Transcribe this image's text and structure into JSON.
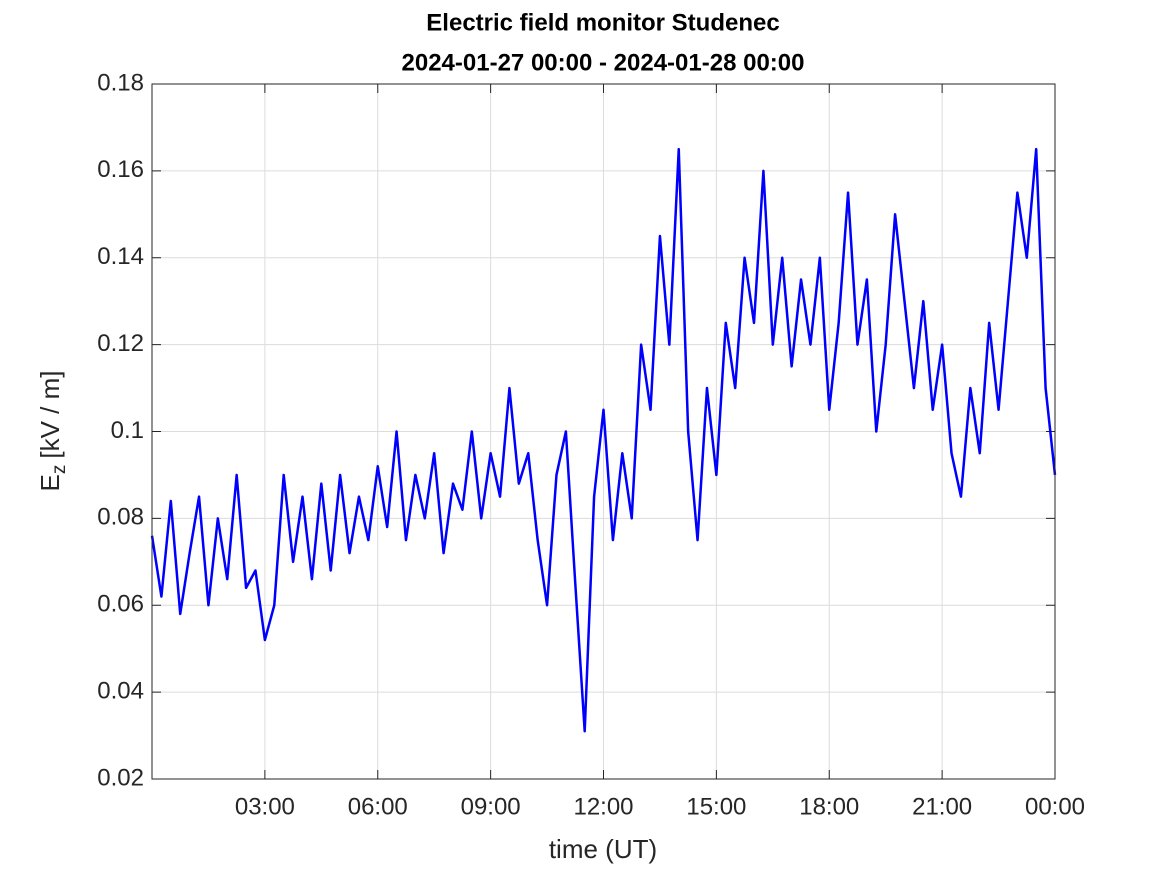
{
  "chart_data": {
    "type": "line",
    "title": "Electric field monitor Studenec",
    "subtitle": "2024-01-27 00:00 - 2024-01-28 00:00",
    "x_label": "time (UT)",
    "y_label": {
      "main": "E",
      "subscript": "z",
      "unit": "[kV / m]"
    },
    "x": [
      0,
      0.25,
      0.5,
      0.75,
      1,
      1.25,
      1.5,
      1.75,
      2,
      2.25,
      2.5,
      2.75,
      3,
      3.25,
      3.5,
      3.75,
      4,
      4.25,
      4.5,
      4.75,
      5,
      5.25,
      5.5,
      5.75,
      6,
      6.25,
      6.5,
      6.75,
      7,
      7.25,
      7.5,
      7.75,
      8,
      8.25,
      8.5,
      8.75,
      9,
      9.25,
      9.5,
      9.75,
      10,
      10.25,
      10.5,
      10.75,
      11,
      11.25,
      11.5,
      11.75,
      12,
      12.25,
      12.5,
      12.75,
      13,
      13.25,
      13.5,
      13.75,
      14,
      14.25,
      14.5,
      14.75,
      15,
      15.25,
      15.5,
      15.75,
      16,
      16.25,
      16.5,
      16.75,
      17,
      17.25,
      17.5,
      17.75,
      18,
      18.25,
      18.5,
      18.75,
      19,
      19.25,
      19.5,
      19.75,
      20,
      20.25,
      20.5,
      20.75,
      21,
      21.25,
      21.5,
      21.75,
      22,
      22.25,
      22.5,
      22.75,
      23,
      23.25,
      23.5,
      23.75,
      24
    ],
    "series": [
      {
        "name": "Ez",
        "color": "#0000ff",
        "values": [
          0.076,
          0.062,
          0.084,
          0.058,
          0.072,
          0.085,
          0.06,
          0.08,
          0.066,
          0.09,
          0.064,
          0.068,
          0.052,
          0.06,
          0.09,
          0.07,
          0.085,
          0.066,
          0.088,
          0.068,
          0.09,
          0.072,
          0.085,
          0.075,
          0.092,
          0.078,
          0.1,
          0.075,
          0.09,
          0.08,
          0.095,
          0.072,
          0.088,
          0.082,
          0.1,
          0.08,
          0.095,
          0.085,
          0.11,
          0.088,
          0.095,
          0.075,
          0.06,
          0.09,
          0.1,
          0.065,
          0.031,
          0.085,
          0.105,
          0.075,
          0.095,
          0.08,
          0.12,
          0.105,
          0.145,
          0.12,
          0.165,
          0.1,
          0.075,
          0.11,
          0.09,
          0.125,
          0.11,
          0.14,
          0.125,
          0.16,
          0.12,
          0.14,
          0.115,
          0.135,
          0.12,
          0.14,
          0.105,
          0.125,
          0.155,
          0.12,
          0.135,
          0.1,
          0.12,
          0.15,
          0.13,
          0.11,
          0.13,
          0.105,
          0.12,
          0.095,
          0.085,
          0.11,
          0.095,
          0.125,
          0.105,
          0.13,
          0.155,
          0.14,
          0.165,
          0.11,
          0.09
        ]
      }
    ],
    "xlim": [
      0,
      24
    ],
    "xticks": [
      {
        "value": 3,
        "label": "03:00"
      },
      {
        "value": 6,
        "label": "06:00"
      },
      {
        "value": 9,
        "label": "09:00"
      },
      {
        "value": 12,
        "label": "12:00"
      },
      {
        "value": 15,
        "label": "15:00"
      },
      {
        "value": 18,
        "label": "18:00"
      },
      {
        "value": 21,
        "label": "21:00"
      },
      {
        "value": 24,
        "label": "00:00"
      }
    ],
    "ylim": [
      0.02,
      0.18
    ],
    "yticks": [
      0.02,
      0.04,
      0.06,
      0.08,
      0.1,
      0.12,
      0.14,
      0.16,
      0.18
    ],
    "grid": true
  }
}
